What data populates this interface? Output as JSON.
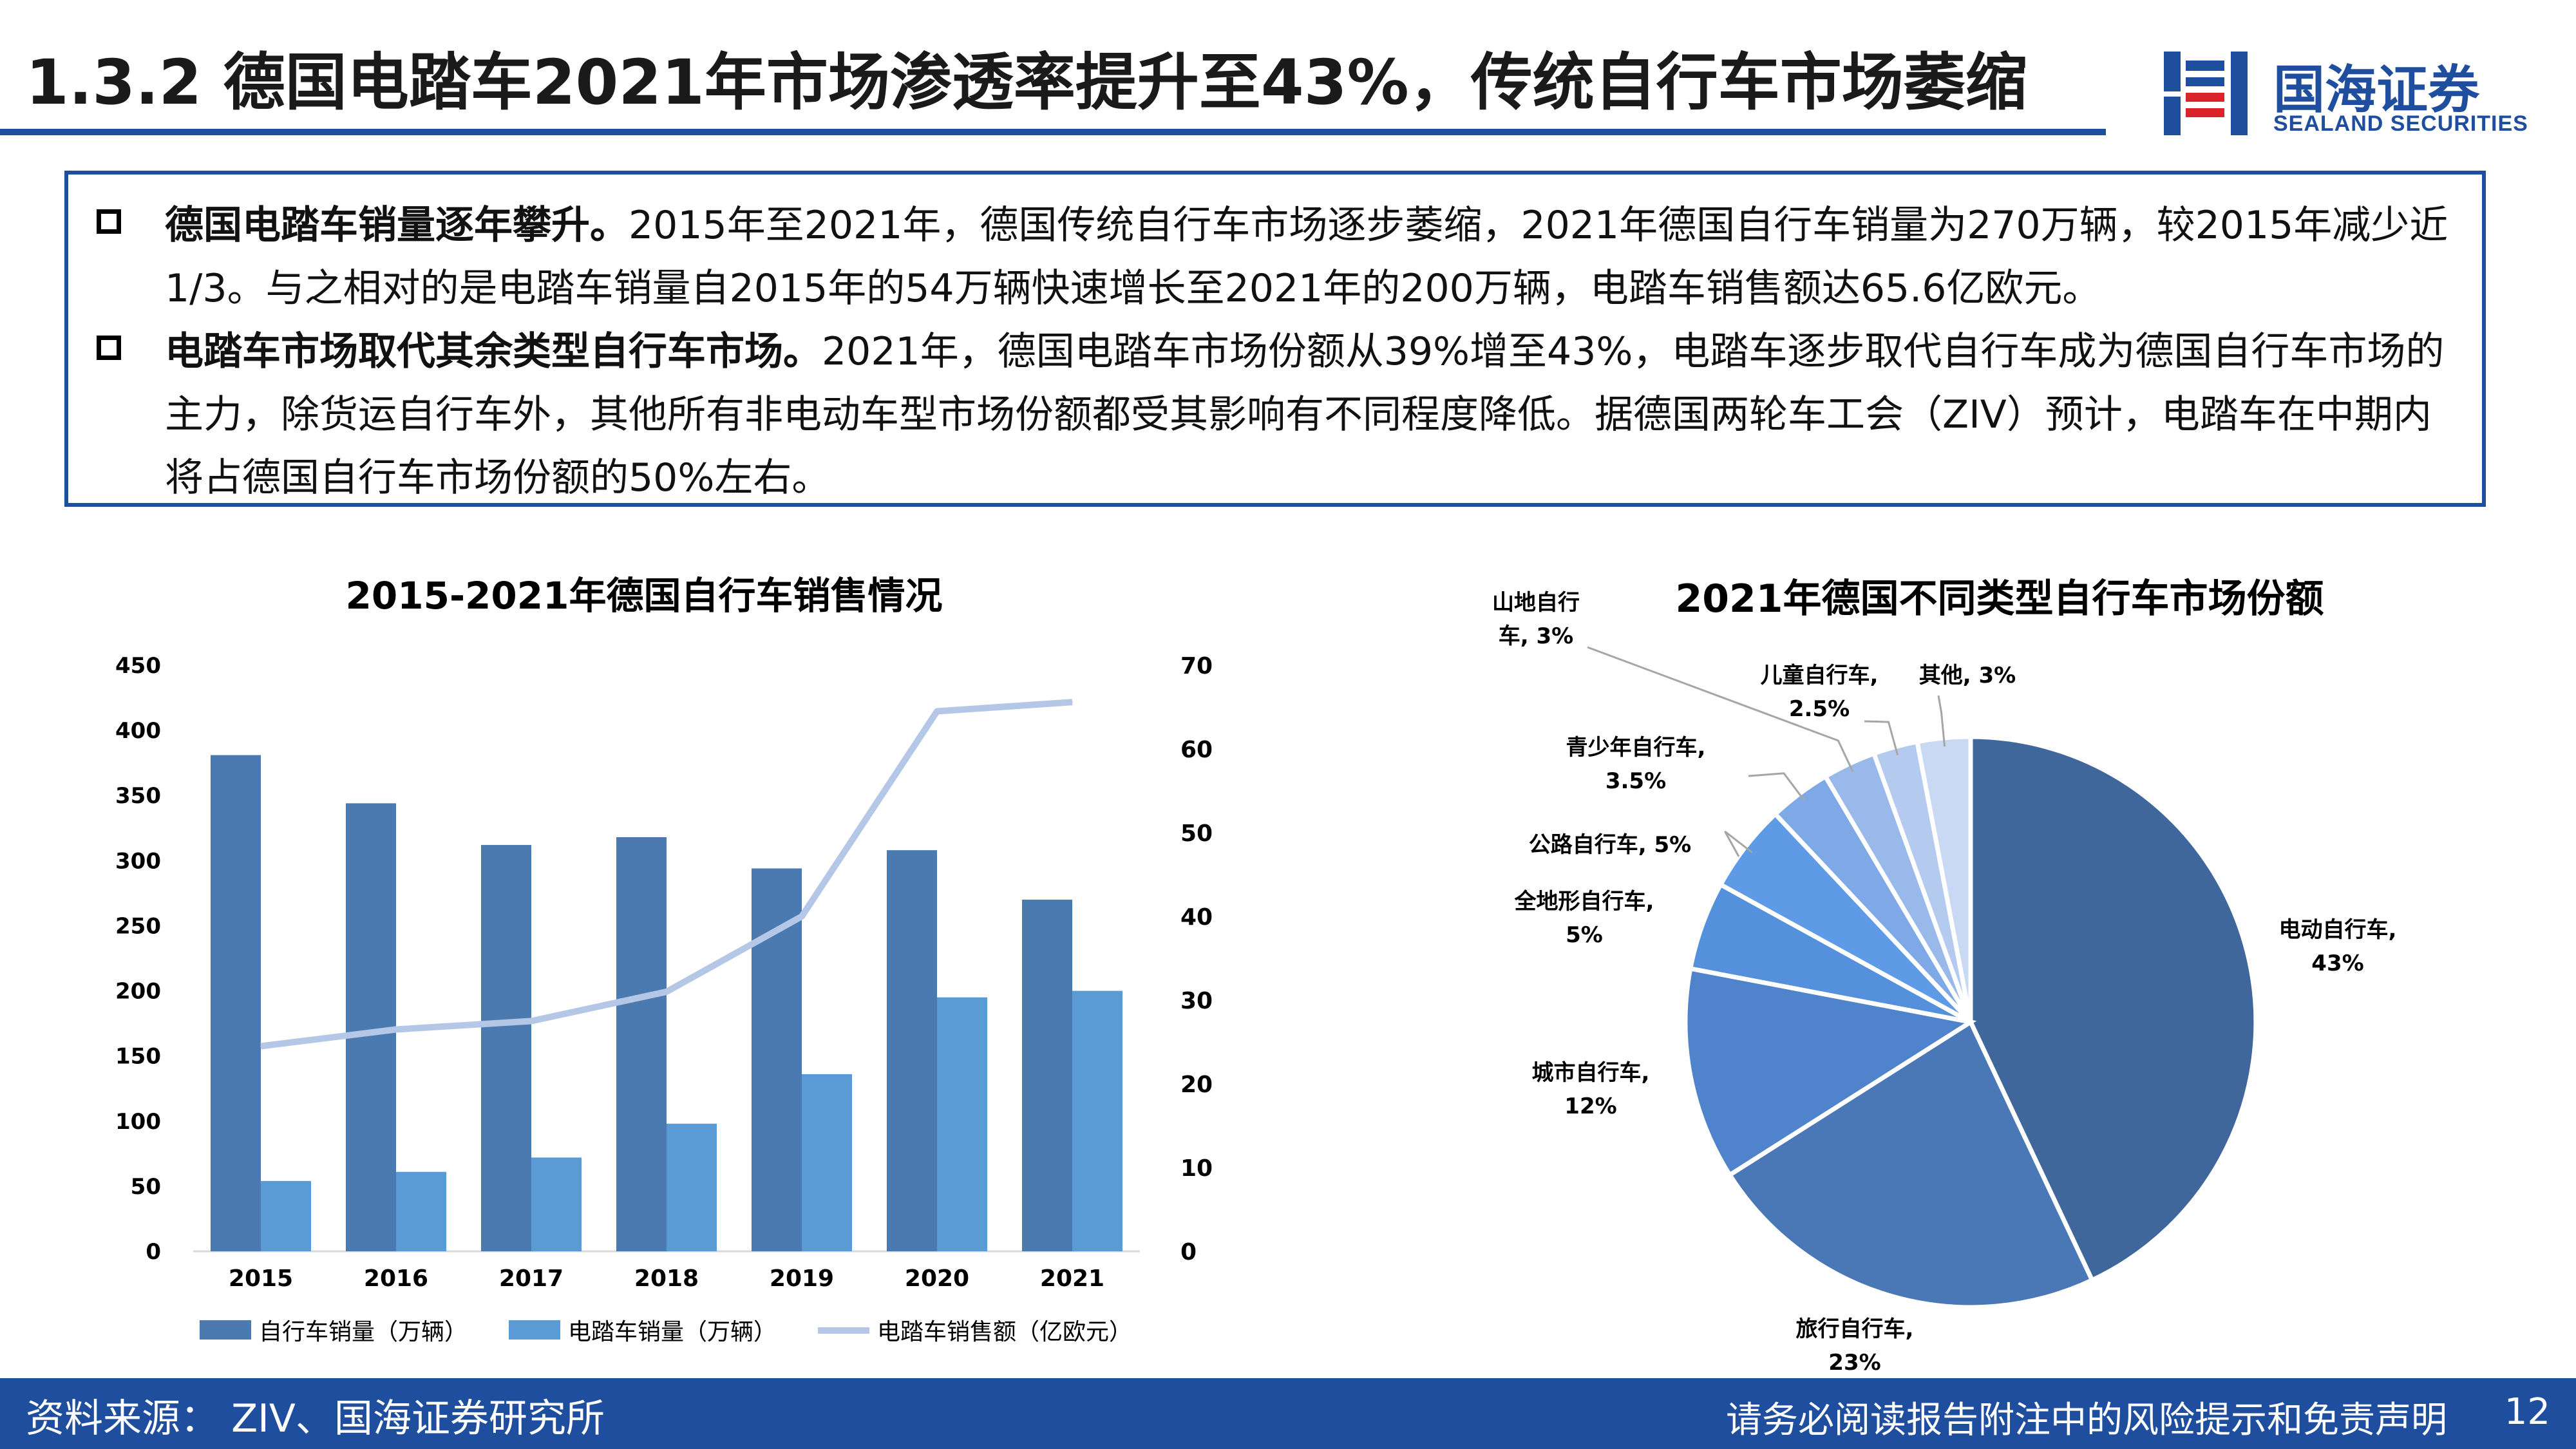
{
  "header": {
    "title": "1.3.2 德国电踏车2021年市场渗透率提升至43%，传统自行车市场萎缩",
    "logo_cn": "国海证券",
    "logo_en": "SEALAND SECURITIES"
  },
  "summary": {
    "bullets": [
      {
        "lead": "德国电踏车销量逐年攀升。",
        "body": "2015年至2021年，德国传统自行车市场逐步萎缩，2021年德国自行车销量为270万辆，较2015年减少近1/3。与之相对的是电踏车销量自2015年的54万辆快速增长至2021年的200万辆，电踏车销售额达65.6亿欧元。"
      },
      {
        "lead": "电踏车市场取代其余类型自行车市场。",
        "body": "2021年，德国电踏车市场份额从39%增至43%，电踏车逐步取代自行车成为德国自行车市场的主力，除货运自行车外，其他所有非电动车型市场份额都受其影响有不同程度降低。据德国两轮车工会（ZIV）预计，电踏车在中期内将占德国自行车市场份额的50%左右。"
      }
    ]
  },
  "chart_data": [
    {
      "type": "bar",
      "title": "2015-2021年德国自行车销售情况",
      "categories": [
        "2015",
        "2016",
        "2017",
        "2018",
        "2019",
        "2020",
        "2021"
      ],
      "series": [
        {
          "name": "自行车销量（万辆）",
          "kind": "bar",
          "axis": "left",
          "color": "#4a7ab0",
          "values": [
            381,
            344,
            312,
            318,
            294,
            308,
            270
          ]
        },
        {
          "name": "电踏车销量（万辆）",
          "kind": "bar",
          "axis": "left",
          "color": "#5b9bd5",
          "values": [
            54,
            61,
            72,
            98,
            136,
            195,
            200
          ]
        },
        {
          "name": "电踏车销售额（亿欧元）",
          "kind": "line",
          "axis": "right",
          "color": "#b4c7e7",
          "values": [
            24.5,
            26.5,
            27.5,
            31,
            40,
            64.5,
            65.6
          ]
        }
      ],
      "ylim": [
        0,
        450
      ],
      "yticks": [
        "0",
        "50",
        "100",
        "150",
        "200",
        "250",
        "300",
        "350",
        "400",
        "450"
      ],
      "y2lim": [
        0,
        70
      ],
      "y2ticks": [
        "0",
        "10",
        "20",
        "30",
        "40",
        "50",
        "60",
        "70"
      ],
      "legend": "bottom"
    },
    {
      "type": "pie",
      "title": "2021年德国不同类型自行车市场份额",
      "slices": [
        {
          "label": "电动自行车,",
          "value_label": "43%",
          "value": 43,
          "color": "#3f679c"
        },
        {
          "label": "旅行自行车,",
          "value_label": "23%",
          "value": 23,
          "color": "#4a77b5"
        },
        {
          "label": "城市自行车,",
          "value_label": "12%",
          "value": 12,
          "color": "#4f84cc"
        },
        {
          "label": "全地形自行车,",
          "value_label": "5%",
          "value": 5,
          "color": "#5590dd"
        },
        {
          "label": "公路自行车, 5%",
          "value_label": "",
          "value": 5,
          "color": "#5f9ae6"
        },
        {
          "label": "青少年自行车,",
          "value_label": "3.5%",
          "value": 3.5,
          "color": "#7ea8e6"
        },
        {
          "label": "山地自行",
          "value_label": "车, 3%",
          "value": 3,
          "color": "#9ab9eb"
        },
        {
          "label": "儿童自行车,",
          "value_label": "2.5%",
          "value": 2.5,
          "color": "#b4caee"
        },
        {
          "label": "其他, 3%",
          "value_label": "",
          "value": 3,
          "color": "#c9d8f3"
        }
      ],
      "legend": "none"
    }
  ],
  "footer": {
    "source": "资料来源：  ZIV、国海证券研究所",
    "disclaimer": "请务必阅读报告附注中的风险提示和免责声明",
    "page": "12"
  }
}
